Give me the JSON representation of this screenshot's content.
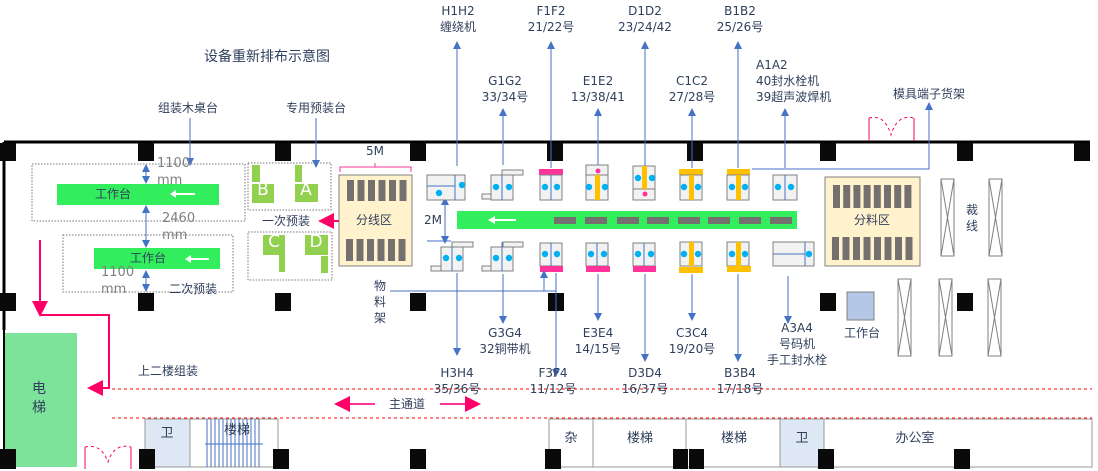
{
  "title": "设备重新排布示意图",
  "workbenches": {
    "top_label": "工作台",
    "bottom_label": "工作台",
    "dim_top": "1100 mm",
    "dim_middle": "2460 mm",
    "dim_bottom": "1100 mm",
    "group_label": "组装木桌台",
    "second_label": "二次预装"
  },
  "prebench": {
    "label": "专用预装台",
    "first_label": "一次预装",
    "slots": [
      "B",
      "A",
      "C",
      "D"
    ]
  },
  "split_area": {
    "label": "分线区",
    "width_label": "5M",
    "gap_label": "2M"
  },
  "material_rack": "物料架",
  "top_machines": [
    {
      "code": "H1H2",
      "desc": "缠绕机"
    },
    {
      "code": "G1G2",
      "desc": "33/34号"
    },
    {
      "code": "F1F2",
      "desc": "21/22号"
    },
    {
      "code": "E1E2",
      "desc": "13/38/41"
    },
    {
      "code": "D1D2",
      "desc": "23/24/42"
    },
    {
      "code": "C1C2",
      "desc": "27/28号"
    },
    {
      "code": "B1B2",
      "desc": "25/26号"
    },
    {
      "code": "A1A2",
      "desc": "40封水栓机",
      "desc2": "39超声波焊机"
    }
  ],
  "bottom_machines": [
    {
      "code": "H3H4",
      "desc": "35/36号"
    },
    {
      "code": "G3G4",
      "desc": "32铜带机"
    },
    {
      "code": "F3F4",
      "desc": "11/12号"
    },
    {
      "code": "E3E4",
      "desc": "14/15号"
    },
    {
      "code": "D3D4",
      "desc": "16/37号"
    },
    {
      "code": "C3C4",
      "desc": "19/20号"
    },
    {
      "code": "B3B4",
      "desc": "17/18号"
    },
    {
      "code": "A3A4",
      "desc": "号码机",
      "desc2": "手工封水栓"
    }
  ],
  "mold_rack": "模具端子货架",
  "distribution_area": "分料区",
  "cutting": "裁线",
  "right_bench": "工作台",
  "upstairs": "上二楼组装",
  "elevator": "电梯",
  "main_aisle": "主通道",
  "rooms": [
    "卫",
    "楼梯",
    "杂",
    "楼梯",
    "楼梯",
    "卫",
    "办公室"
  ],
  "colors": {
    "conveyor": "#33ee5c",
    "bench": "#92d050",
    "split_area": "#fff2cc",
    "pink": "#ff3399",
    "orange": "#ffc000",
    "dot": "#00b0f0",
    "arrow": "#4472c4",
    "elevator": "#7de39b",
    "room_blue": "#dde8f4"
  }
}
